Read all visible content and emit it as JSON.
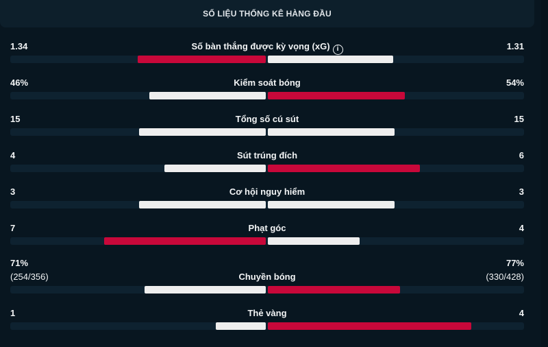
{
  "header": {
    "title": "SỐ LIỆU THỐNG KÊ HÀNG ĐẦU"
  },
  "colors": {
    "highlight": "#c8083a",
    "normal": "#eeeeee",
    "track": "#0e2230",
    "background": "#081620"
  },
  "stats": [
    {
      "label": "Số bàn thắng được kỳ vọng (xG)",
      "home": "1.34",
      "away": "1.31",
      "home_value": 1.34,
      "away_value": 1.31,
      "highlight": "home",
      "info_icon": "info-icon"
    },
    {
      "label": "Kiểm soát bóng",
      "home": "46%",
      "away": "54%",
      "home_value": 46,
      "away_value": 54,
      "highlight": "away"
    },
    {
      "label": "Tổng số cú sút",
      "home": "15",
      "away": "15",
      "home_value": 15,
      "away_value": 15,
      "highlight": "none"
    },
    {
      "label": "Sút trúng đích",
      "home": "4",
      "away": "6",
      "home_value": 4,
      "away_value": 6,
      "highlight": "away"
    },
    {
      "label": "Cơ hội nguy hiểm",
      "home": "3",
      "away": "3",
      "home_value": 3,
      "away_value": 3,
      "highlight": "none"
    },
    {
      "label": "Phạt góc",
      "home": "7",
      "away": "4",
      "home_value": 7,
      "away_value": 4,
      "highlight": "home"
    },
    {
      "label": "Chuyền bóng",
      "home": "71%",
      "away": "77%",
      "home_sub": "(254/356)",
      "away_sub": "(330/428)",
      "home_value": 71,
      "away_value": 77,
      "highlight": "away"
    },
    {
      "label": "Thẻ vàng",
      "home": "1",
      "away": "4",
      "home_value": 1,
      "away_value": 4,
      "highlight": "away"
    }
  ]
}
